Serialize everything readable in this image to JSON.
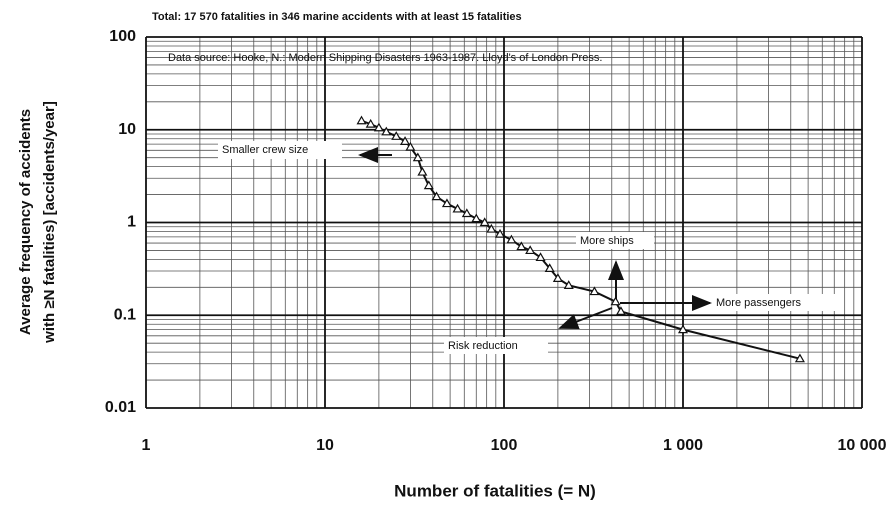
{
  "chart_data": {
    "type": "line",
    "title": "Total: 17 570 fatalities in 346 marine accidents with at least 15 fatalities",
    "source_note": "Data source: Hooke, N.: Modern Shipping Disasters 1963-1987. Lloyd's of London Press.",
    "x_label": "Number of fatalities (= N)",
    "y_label": [
      "Average frequency of accidents",
      "with ≥N fatalities)  [accidents/year]"
    ],
    "annotations": [
      "Smaller crew size",
      "More ships",
      "More passengers",
      "Risk reduction"
    ],
    "x_scale": "log",
    "y_scale": "log",
    "grid": true,
    "minor_grid": true,
    "xlim": [
      1,
      10000
    ],
    "ylim": [
      0.01,
      100
    ],
    "xticks": [
      1,
      10,
      100,
      {
        "value": 1000,
        "label": "1 000"
      },
      {
        "value": 10000,
        "label": "10 000"
      }
    ],
    "yticks": [
      100,
      10,
      1,
      0.1,
      0.01
    ],
    "series": [
      {
        "color": "#111111",
        "x": [
          16,
          18,
          20,
          22,
          25,
          28,
          30,
          33,
          35,
          38,
          42,
          48,
          55,
          62,
          70,
          78,
          85,
          95,
          110,
          125,
          140,
          160,
          180,
          200,
          230,
          320,
          420,
          450,
          1000,
          4500
        ],
        "values": [
          12.5,
          11.5,
          10.5,
          9.5,
          8.5,
          7.5,
          6.5,
          5,
          3.5,
          2.5,
          1.9,
          1.6,
          1.4,
          1.25,
          1.1,
          1.0,
          0.85,
          0.75,
          0.65,
          0.55,
          0.5,
          0.42,
          0.32,
          0.25,
          0.21,
          0.18,
          0.14,
          0.11,
          0.07,
          0.034
        ]
      }
    ]
  }
}
